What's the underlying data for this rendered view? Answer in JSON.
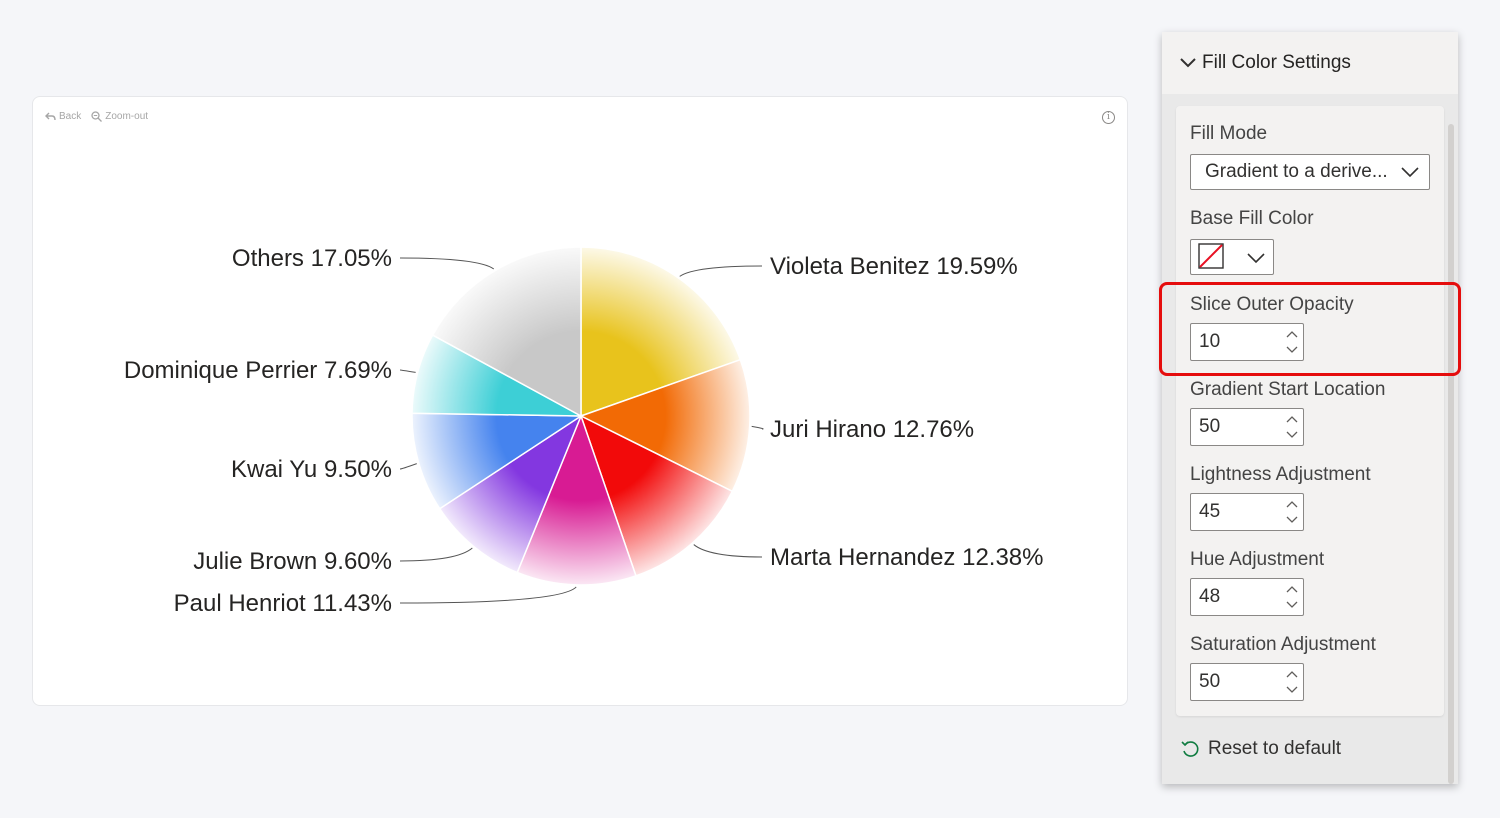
{
  "toolbar": {
    "back_label": "Back",
    "zoom_label": "Zoom-out"
  },
  "info_glyph": "i",
  "chart_data": {
    "type": "pie",
    "title": "",
    "slices": [
      {
        "label": "Violeta Benitez 19.59%",
        "value": 19.59,
        "color": "#e8c31c"
      },
      {
        "label": "Juri Hirano 12.76%",
        "value": 12.76,
        "color": "#f26a05"
      },
      {
        "label": "Marta Hernandez 12.38%",
        "value": 12.38,
        "color": "#f20a0a"
      },
      {
        "label": "Paul Henriot 11.43%",
        "value": 11.43,
        "color": "#d81b93"
      },
      {
        "label": "Julie Brown 9.60%",
        "value": 9.6,
        "color": "#8337e0"
      },
      {
        "label": "Kwai Yu 9.50%",
        "value": 9.5,
        "color": "#4583ee"
      },
      {
        "label": "Dominique Perrier 7.69%",
        "value": 7.69,
        "color": "#3dcfd6"
      },
      {
        "label": "Others 17.05%",
        "value": 17.05,
        "color": "#c8c8c8"
      }
    ]
  },
  "panel": {
    "title": "Fill Color Settings",
    "fill_mode_label": "Fill Mode",
    "fill_mode_value": "Gradient to a derive...",
    "base_fill_label": "Base Fill Color",
    "slice_outer_opacity_label": "Slice Outer Opacity",
    "slice_outer_opacity_value": "10",
    "gradient_start_label": "Gradient Start Location",
    "gradient_start_value": "50",
    "lightness_label": "Lightness Adjustment",
    "lightness_value": "45",
    "hue_label": "Hue Adjustment",
    "hue_value": "48",
    "saturation_label": "Saturation Adjustment",
    "saturation_value": "50",
    "reset_label": "Reset to default"
  },
  "colors": {
    "highlight": "#e50d0d"
  }
}
